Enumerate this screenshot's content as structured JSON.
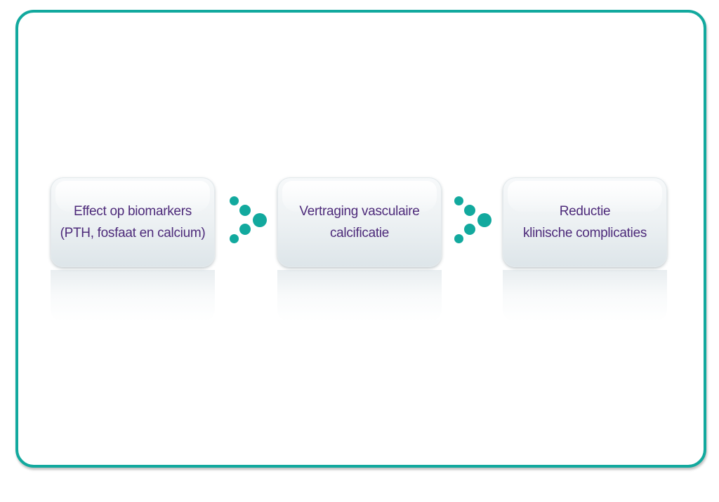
{
  "diagram": {
    "steps": [
      {
        "line1": "Effect op biomarkers",
        "line2": "(PTH, fosfaat en calcium)"
      },
      {
        "line1": "Vertraging vasculaire",
        "line2": "calcificatie"
      },
      {
        "line1": "Reductie",
        "line2": "klinische complicaties"
      }
    ],
    "arrows": [
      {
        "icon": "dots-arrow-right-icon"
      },
      {
        "icon": "dots-arrow-right-icon"
      }
    ],
    "colors": {
      "accent": "#12a99e",
      "text": "#4d2a7a",
      "box": "#eef2f4"
    }
  }
}
